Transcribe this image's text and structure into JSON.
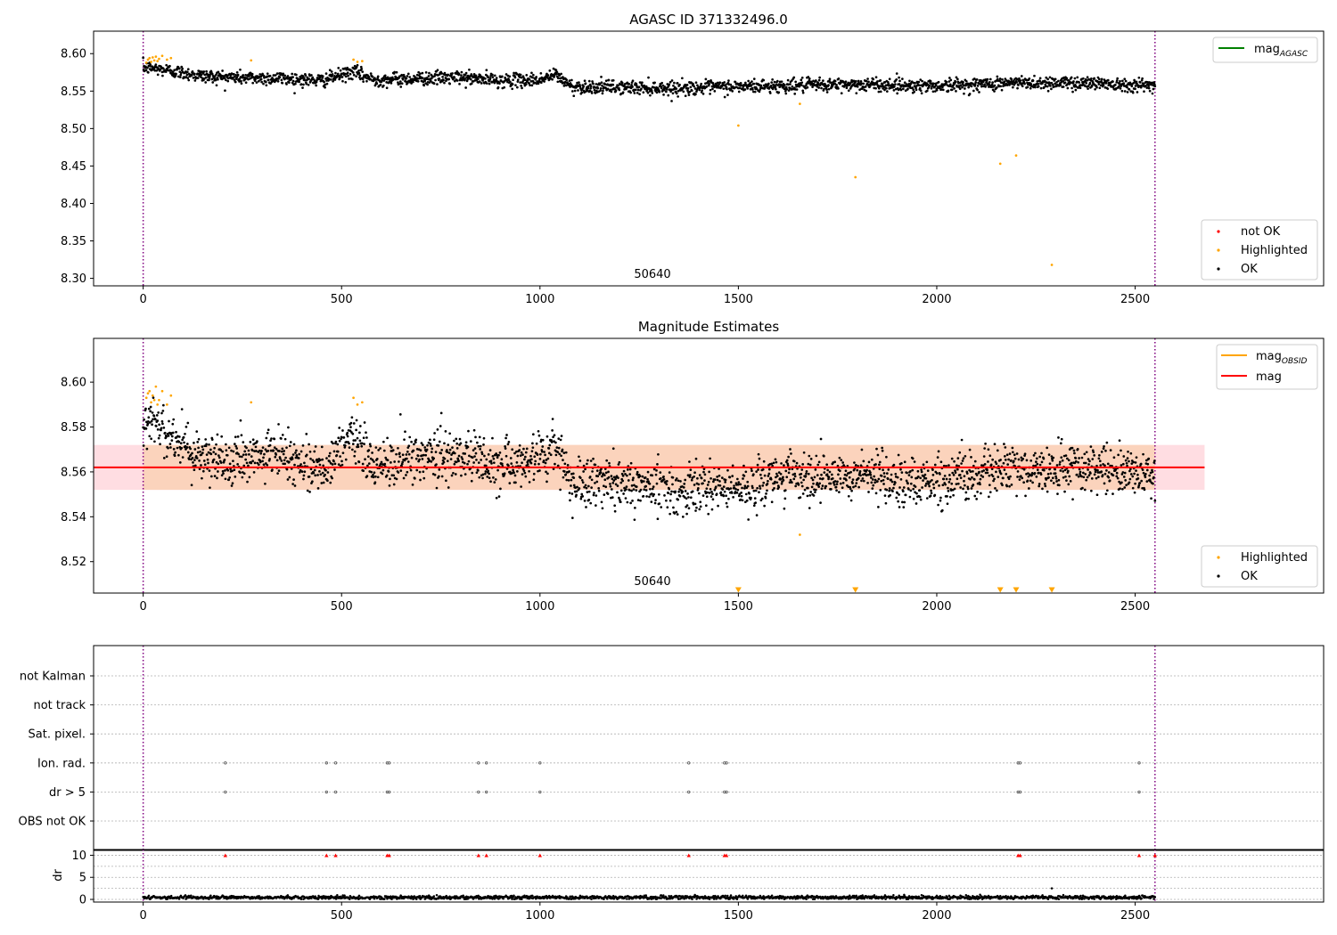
{
  "figure": {
    "title": "AGASC ID 371332496.0"
  },
  "colors": {
    "ok": "#000000",
    "highlighted": "#ffa500",
    "not_ok": "#ff0000",
    "mag_agasc_line": "#008000",
    "mag_obsid_line": "#ffa500",
    "mag_line": "#ff0000",
    "band_outer": "#ffdde2",
    "band_inner": "#fbd3bc",
    "window_boundary": "#800080",
    "grid": "#b0b0b0"
  },
  "chart_data": [
    {
      "id": "agasc",
      "type": "scatter",
      "title": "",
      "xlim": [
        -125,
        2975
      ],
      "ylim": [
        8.29,
        8.63
      ],
      "xticks": [
        0,
        500,
        1000,
        1500,
        2000,
        2500
      ],
      "yticks": [
        8.3,
        8.35,
        8.4,
        8.45,
        8.5,
        8.55,
        8.6
      ],
      "ytick_decimals": 2,
      "window": [
        0,
        2550
      ],
      "window_label": "50640",
      "legend_lines": [
        {
          "label": "mag",
          "sub": "AGASC",
          "color": "#008000"
        }
      ],
      "legend_points": [
        {
          "label": "not OK",
          "color": "#ff0000"
        },
        {
          "label": "Highlighted",
          "color": "#ffa500"
        },
        {
          "label": "OK",
          "color": "#000000"
        }
      ],
      "ok_trend": [
        [
          0,
          8.582
        ],
        [
          60,
          8.578
        ],
        [
          150,
          8.57
        ],
        [
          250,
          8.568
        ],
        [
          350,
          8.567
        ],
        [
          450,
          8.564
        ],
        [
          530,
          8.576
        ],
        [
          580,
          8.565
        ],
        [
          700,
          8.567
        ],
        [
          800,
          8.568
        ],
        [
          900,
          8.564
        ],
        [
          1000,
          8.565
        ],
        [
          1040,
          8.572
        ],
        [
          1080,
          8.556
        ],
        [
          1200,
          8.555
        ],
        [
          1350,
          8.554
        ],
        [
          1500,
          8.556
        ],
        [
          1600,
          8.557
        ],
        [
          1700,
          8.558
        ],
        [
          1800,
          8.559
        ],
        [
          2000,
          8.557
        ],
        [
          2200,
          8.561
        ],
        [
          2400,
          8.561
        ],
        [
          2550,
          8.557
        ]
      ],
      "ok_count": 2400,
      "ok_noise": 0.0045,
      "highlighted_points": [
        [
          8,
          8.588
        ],
        [
          12,
          8.592
        ],
        [
          16,
          8.594
        ],
        [
          20,
          8.589
        ],
        [
          24,
          8.595
        ],
        [
          28,
          8.591
        ],
        [
          32,
          8.596
        ],
        [
          36,
          8.59
        ],
        [
          40,
          8.593
        ],
        [
          48,
          8.597
        ],
        [
          60,
          8.592
        ],
        [
          70,
          8.594
        ],
        [
          272,
          8.591
        ],
        [
          530,
          8.592
        ],
        [
          540,
          8.589
        ],
        [
          552,
          8.59
        ],
        [
          1500,
          8.504
        ],
        [
          1655,
          8.533
        ],
        [
          1795,
          8.435
        ],
        [
          2160,
          8.453
        ],
        [
          2200,
          8.464
        ],
        [
          2290,
          8.318
        ]
      ],
      "not_ok_points": []
    },
    {
      "id": "magnitude-estimates",
      "type": "scatter",
      "title": "Magnitude Estimates",
      "xlim": [
        -125,
        2975
      ],
      "ylim": [
        8.506,
        8.6195
      ],
      "xticks": [
        0,
        500,
        1000,
        1500,
        2000,
        2500
      ],
      "yticks": [
        8.52,
        8.54,
        8.56,
        8.58,
        8.6
      ],
      "ytick_decimals": 2,
      "window": [
        0,
        2550
      ],
      "window_label": "50640",
      "mag": 8.562,
      "mag_band_outer": [
        -125,
        2675,
        8.552,
        8.572
      ],
      "mag_band_inner": [
        0,
        2550,
        8.552,
        8.572
      ],
      "legend_lines": [
        {
          "label": "mag",
          "sub": "OBSID",
          "color": "#ffa500"
        },
        {
          "label": "mag",
          "sub": "",
          "color": "#ff0000"
        }
      ],
      "legend_points": [
        {
          "label": "Highlighted",
          "color": "#ffa500"
        },
        {
          "label": "OK",
          "color": "#000000"
        }
      ],
      "ok_trend": [
        [
          0,
          8.584
        ],
        [
          60,
          8.578
        ],
        [
          150,
          8.566
        ],
        [
          250,
          8.565
        ],
        [
          350,
          8.568
        ],
        [
          450,
          8.561
        ],
        [
          530,
          8.576
        ],
        [
          580,
          8.562
        ],
        [
          700,
          8.567
        ],
        [
          800,
          8.568
        ],
        [
          900,
          8.563
        ],
        [
          1000,
          8.566
        ],
        [
          1040,
          8.572
        ],
        [
          1080,
          8.554
        ],
        [
          1200,
          8.556
        ],
        [
          1350,
          8.551
        ],
        [
          1500,
          8.553
        ],
        [
          1600,
          8.558
        ],
        [
          1700,
          8.558
        ],
        [
          1800,
          8.559
        ],
        [
          2000,
          8.556
        ],
        [
          2200,
          8.562
        ],
        [
          2400,
          8.562
        ],
        [
          2550,
          8.558
        ]
      ],
      "ok_count": 2400,
      "ok_noise": 0.0055,
      "highlighted_points": [
        [
          8,
          8.593
        ],
        [
          12,
          8.595
        ],
        [
          16,
          8.596
        ],
        [
          20,
          8.591
        ],
        [
          24,
          8.594
        ],
        [
          28,
          8.592
        ],
        [
          32,
          8.598
        ],
        [
          36,
          8.59
        ],
        [
          40,
          8.592
        ],
        [
          48,
          8.596
        ],
        [
          60,
          8.59
        ],
        [
          70,
          8.594
        ],
        [
          272,
          8.591
        ],
        [
          530,
          8.593
        ],
        [
          540,
          8.59
        ],
        [
          552,
          8.591
        ],
        [
          1655,
          8.532
        ]
      ],
      "below_range_markers": [
        1500,
        1795,
        2160,
        2200,
        2290
      ]
    },
    {
      "id": "flags",
      "type": "scatter",
      "title": "",
      "xlim": [
        -125,
        2975
      ],
      "window": [
        0,
        2550
      ],
      "categories": [
        "not Kalman",
        "not track",
        "Sat. pixel.",
        "Ion. rad.",
        "dr > 5",
        "OBS not OK"
      ],
      "flag_times": {
        "Ion. rad.": [
          207,
          462,
          485,
          615,
          620,
          845,
          865,
          1000,
          1375,
          1465,
          1470,
          2205,
          2210,
          2510
        ],
        "dr > 5": [
          207,
          462,
          485,
          615,
          620,
          845,
          865,
          1000,
          1375,
          1465,
          1470,
          2205,
          2210,
          2510
        ]
      }
    },
    {
      "id": "dr",
      "type": "scatter",
      "title": "",
      "ylabel": "dr",
      "xlim": [
        -125,
        2975
      ],
      "ylim": [
        -0.6,
        11.3
      ],
      "xticks": [
        0,
        500,
        1000,
        1500,
        2000,
        2500
      ],
      "yticks": [
        0,
        5,
        10
      ],
      "ytick_decimals": 0,
      "window": [
        0,
        2550
      ],
      "ok_count": 1800,
      "ok_level": 0.45,
      "ok_noise": 0.2,
      "outlier_points": [
        [
          2290,
          2.5
        ]
      ],
      "clipped_marker_times": [
        207,
        462,
        485,
        615,
        620,
        845,
        865,
        1000,
        1375,
        1465,
        1470,
        2205,
        2210,
        2510,
        2550
      ],
      "clipped_value": 10
    }
  ]
}
